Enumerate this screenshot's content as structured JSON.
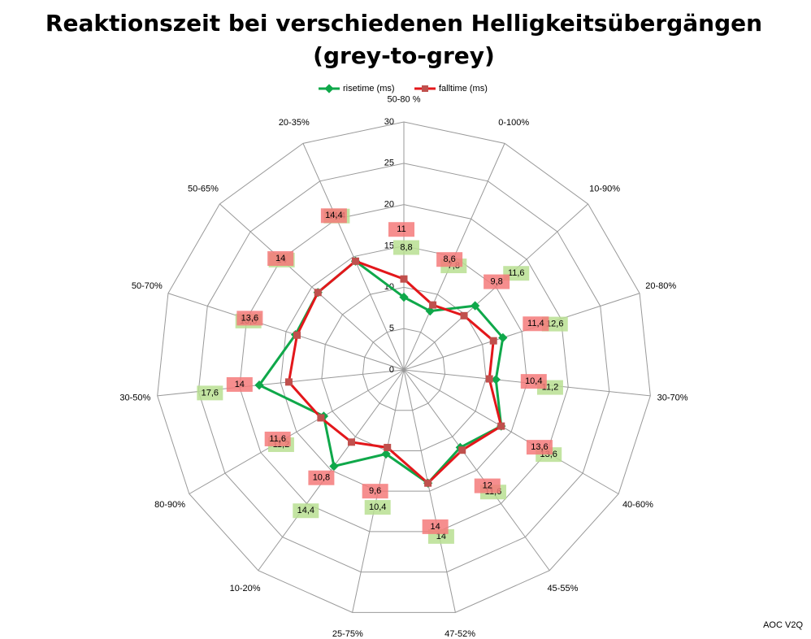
{
  "chart_data": {
    "type": "radar",
    "title": [
      "Reaktionszeit bei verschiedenen Helligkeitsübergängen",
      "(grey-to-grey)"
    ],
    "note": "AOC V2Q",
    "categories": [
      "50-80 %",
      "0-100%",
      "10-90%",
      "20-80%",
      "30-70%",
      "40-60%",
      "45-55%",
      "47-52%",
      "25-75%",
      "10-20%",
      "80-90%",
      "30-50%",
      "50-70%",
      "50-65%",
      "20-35%"
    ],
    "rlim": [
      0,
      30
    ],
    "rticks": [
      0,
      5,
      10,
      15,
      20,
      25,
      30
    ],
    "legend": "top",
    "series": [
      {
        "name": "risetime (ms)",
        "color": "#0fa84a",
        "label_color": "#b9df92",
        "values": [
          8.8,
          7.8,
          11.6,
          12.6,
          11.2,
          13.6,
          11.6,
          14,
          10.4,
          14.4,
          11.2,
          17.6,
          13.8,
          14,
          14.4
        ],
        "value_labels": [
          "8,8",
          "7,8",
          "11,6",
          "12,6",
          "11,2",
          "13,6",
          "11,6",
          "14",
          "10,4",
          "14,4",
          "11,2",
          "17,6",
          "13,8",
          "14",
          "14,4"
        ]
      },
      {
        "name": "falltime (ms)",
        "color": "#e3171b",
        "label_color": "#f47a7a",
        "values": [
          11,
          8.6,
          9.8,
          11.4,
          10.4,
          13.6,
          12,
          14,
          9.6,
          10.8,
          11.6,
          14,
          13.6,
          14,
          14.4
        ],
        "value_labels": [
          "11",
          "8,6",
          "9,8",
          "11,4",
          "10,4",
          "13,6",
          "12",
          "14",
          "9,6",
          "10,8",
          "11,6",
          "14",
          "13,6",
          "14",
          "14,4"
        ]
      }
    ]
  }
}
